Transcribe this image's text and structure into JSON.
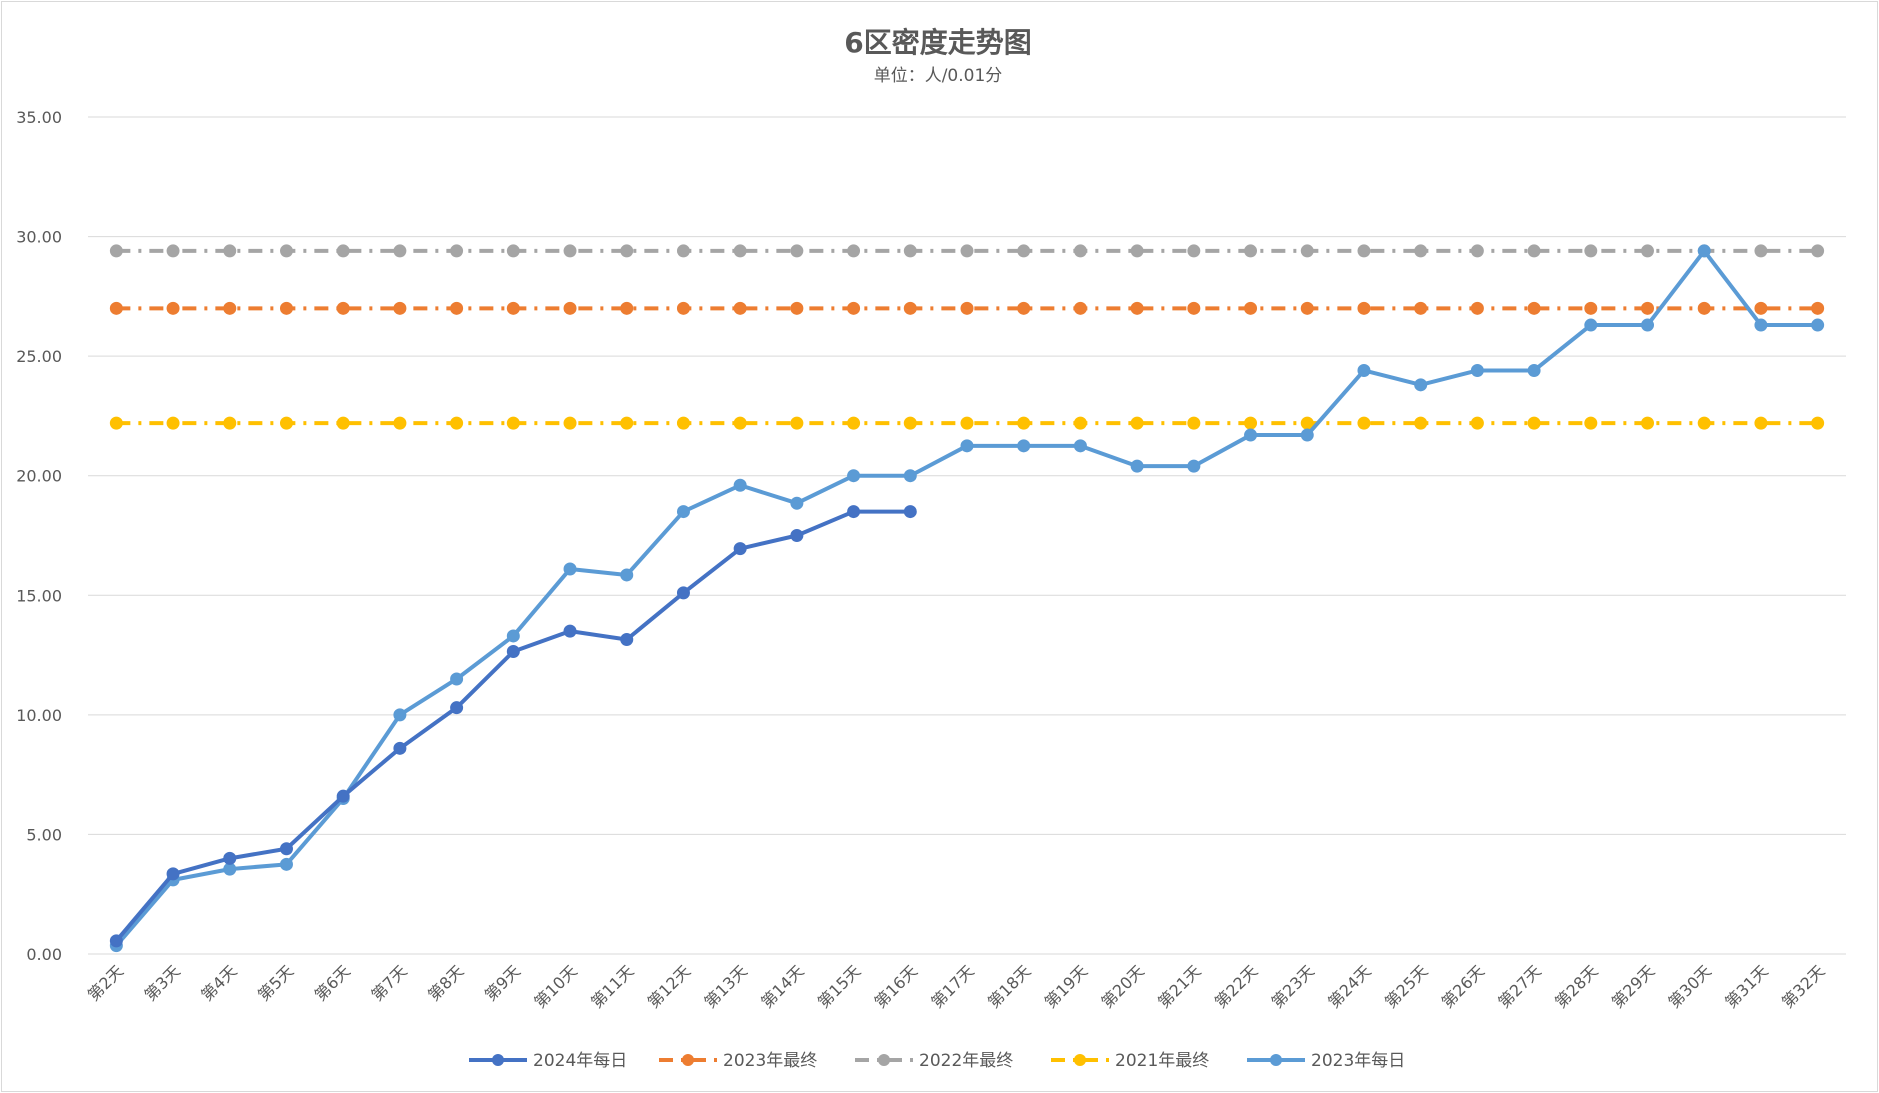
{
  "chart_data": {
    "type": "line",
    "title": "6区密度走势图",
    "subtitle": "单位：人/0.01分",
    "categories": [
      "第2天",
      "第3天",
      "第4天",
      "第5天",
      "第6天",
      "第7天",
      "第8天",
      "第9天",
      "第10天",
      "第11天",
      "第12天",
      "第13天",
      "第14天",
      "第15天",
      "第16天",
      "第17天",
      "第18天",
      "第19天",
      "第20天",
      "第21天",
      "第22天",
      "第23天",
      "第24天",
      "第25天",
      "第26天",
      "第27天",
      "第28天",
      "第29天",
      "第30天",
      "第31天",
      "第32天"
    ],
    "y_ticks": [
      "0.00",
      "5.00",
      "10.00",
      "15.00",
      "20.00",
      "25.00",
      "30.00",
      "35.00"
    ],
    "ylim": [
      0,
      35
    ],
    "grid": true,
    "legend_position": "bottom",
    "series": [
      {
        "name": "2024年每日",
        "color": "#4472c4",
        "style": "solid",
        "values": [
          0.55,
          3.35,
          4.0,
          4.4,
          6.6,
          8.6,
          10.3,
          12.65,
          13.5,
          13.15,
          15.1,
          16.95,
          17.5,
          18.5,
          18.5,
          null,
          null,
          null,
          null,
          null,
          null,
          null,
          null,
          null,
          null,
          null,
          null,
          null,
          null,
          null,
          null
        ]
      },
      {
        "name": "2023年最终",
        "color": "#ed7d31",
        "style": "dashdot",
        "values": [
          27.0,
          27.0,
          27.0,
          27.0,
          27.0,
          27.0,
          27.0,
          27.0,
          27.0,
          27.0,
          27.0,
          27.0,
          27.0,
          27.0,
          27.0,
          27.0,
          27.0,
          27.0,
          27.0,
          27.0,
          27.0,
          27.0,
          27.0,
          27.0,
          27.0,
          27.0,
          27.0,
          27.0,
          27.0,
          27.0,
          27.0
        ]
      },
      {
        "name": "2022年最终",
        "color": "#a5a5a5",
        "style": "dashdot",
        "values": [
          29.4,
          29.4,
          29.4,
          29.4,
          29.4,
          29.4,
          29.4,
          29.4,
          29.4,
          29.4,
          29.4,
          29.4,
          29.4,
          29.4,
          29.4,
          29.4,
          29.4,
          29.4,
          29.4,
          29.4,
          29.4,
          29.4,
          29.4,
          29.4,
          29.4,
          29.4,
          29.4,
          29.4,
          29.4,
          29.4,
          29.4
        ]
      },
      {
        "name": "2021年最终",
        "color": "#ffc000",
        "style": "dashdot",
        "values": [
          22.2,
          22.2,
          22.2,
          22.2,
          22.2,
          22.2,
          22.2,
          22.2,
          22.2,
          22.2,
          22.2,
          22.2,
          22.2,
          22.2,
          22.2,
          22.2,
          22.2,
          22.2,
          22.2,
          22.2,
          22.2,
          22.2,
          22.2,
          22.2,
          22.2,
          22.2,
          22.2,
          22.2,
          22.2,
          22.2,
          22.2
        ]
      },
      {
        "name": "2023年每日",
        "color": "#5b9bd5",
        "style": "solid",
        "values": [
          0.35,
          3.1,
          3.55,
          3.75,
          6.5,
          10.0,
          11.5,
          13.3,
          16.1,
          15.85,
          18.5,
          19.6,
          18.85,
          20.0,
          20.0,
          21.25,
          21.25,
          21.25,
          20.4,
          20.4,
          21.7,
          21.7,
          24.4,
          23.8,
          24.4,
          24.4,
          26.3,
          26.3,
          29.4,
          26.3,
          26.3
        ]
      }
    ]
  }
}
